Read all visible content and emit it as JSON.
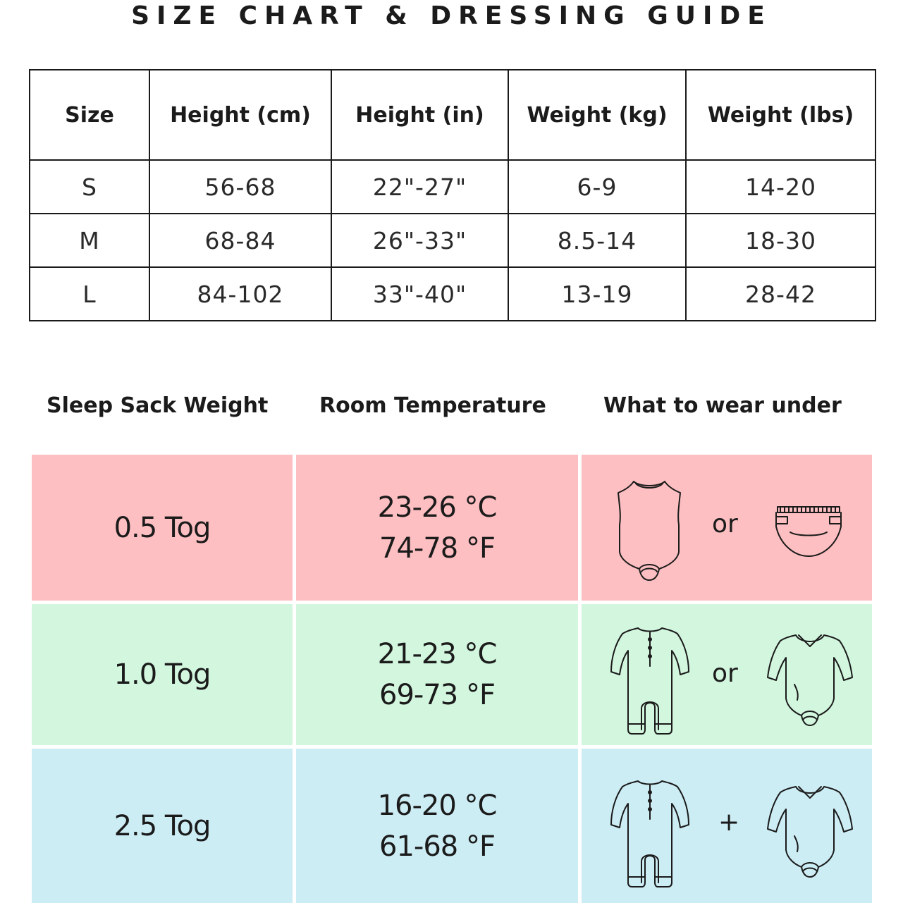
{
  "title": "SIZE CHART & DRESSING GUIDE",
  "size_table": {
    "headers": [
      "Size",
      "Height (cm)",
      "Height (in)",
      "Weight (kg)",
      "Weight (lbs)"
    ],
    "rows": [
      [
        "S",
        "56-68",
        "22\"-27\"",
        "6-9",
        "14-20"
      ],
      [
        "M",
        "68-84",
        "26\"-33\"",
        "8.5-14",
        "18-30"
      ],
      [
        "L",
        "84-102",
        "33\"-40\"",
        "13-19",
        "28-42"
      ]
    ]
  },
  "dressing_guide": {
    "headers": [
      "Sleep Sack Weight",
      "Room Temperature",
      "What to wear under"
    ],
    "rows": [
      {
        "tog": "0.5 Tog",
        "temp_c": "23-26 °C",
        "temp_f": "74-78 °F",
        "item_a": "sleeveless-bodysuit-icon",
        "joiner": "or",
        "item_b": "diaper-icon",
        "color": "#fdbfc1"
      },
      {
        "tog": "1.0 Tog",
        "temp_c": "21-23 °C",
        "temp_f": "69-73 °F",
        "item_a": "footed-sleeper-icon",
        "joiner": "or",
        "item_b": "long-sleeve-bodysuit-icon",
        "color": "#d2f6de"
      },
      {
        "tog": "2.5 Tog",
        "temp_c": "16-20 °C",
        "temp_f": "61-68 °F",
        "item_a": "footed-sleeper-icon",
        "joiner": "+",
        "item_b": "long-sleeve-bodysuit-icon",
        "color": "#cdedf5"
      }
    ]
  }
}
